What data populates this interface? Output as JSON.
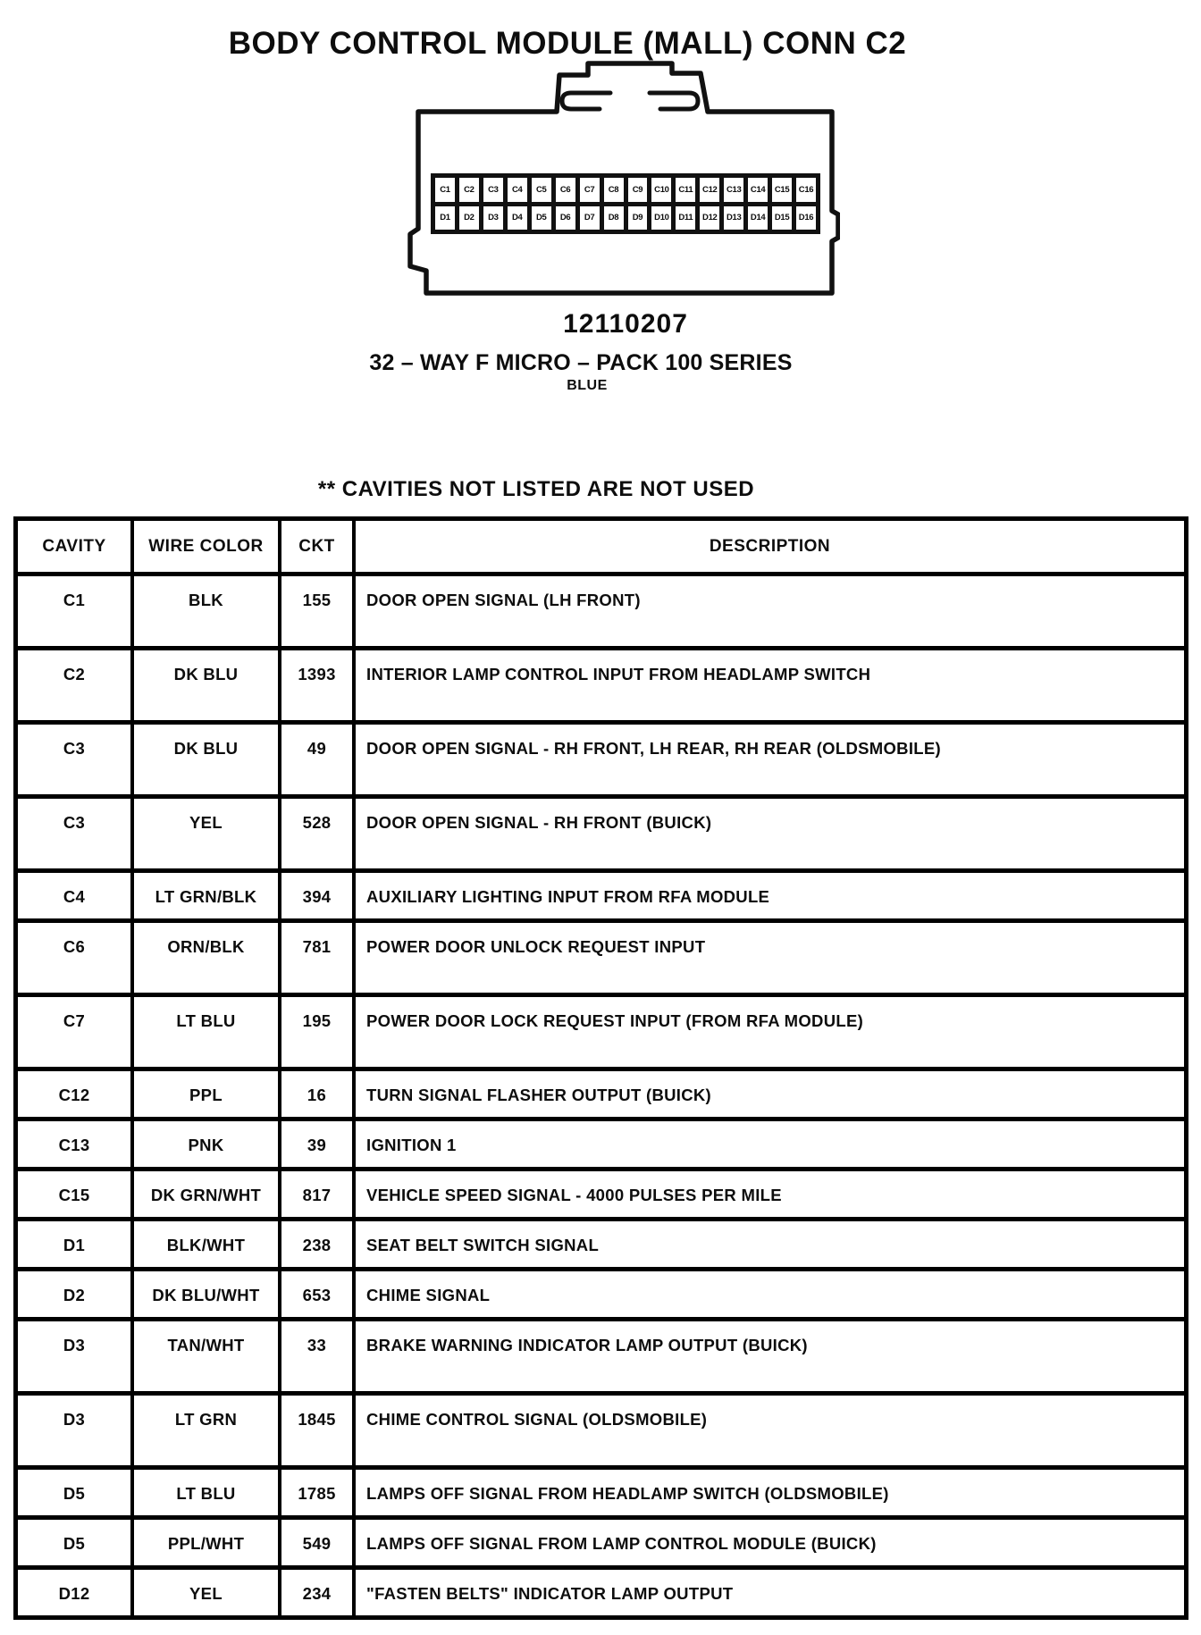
{
  "title": "BODY CONTROL MODULE (MALL) CONN C2",
  "note": "** CAVITIES NOT LISTED ARE NOT USED",
  "connector": {
    "part_number": "12110207",
    "series": "32 – WAY F MICRO – PACK 100 SERIES",
    "color": "BLUE",
    "pin_rows": [
      [
        "C1",
        "C2",
        "C3",
        "C4",
        "C5",
        "C6",
        "C7",
        "C8",
        "C9",
        "C10",
        "C11",
        "C12",
        "C13",
        "C14",
        "C15",
        "C16"
      ],
      [
        "D1",
        "D2",
        "D3",
        "D4",
        "D5",
        "D6",
        "D7",
        "D8",
        "D9",
        "D10",
        "D11",
        "D12",
        "D13",
        "D14",
        "D15",
        "D16"
      ]
    ]
  },
  "table": {
    "headers": [
      "CAVITY",
      "WIRE COLOR",
      "CKT",
      "DESCRIPTION"
    ],
    "rows": [
      {
        "cavity": "C1",
        "wire_color": "BLK",
        "ckt": "155",
        "description": "DOOR OPEN SIGNAL (LH FRONT)",
        "size": "tall"
      },
      {
        "cavity": "C2",
        "wire_color": "DK BLU",
        "ckt": "1393",
        "description": "INTERIOR LAMP CONTROL INPUT FROM HEADLAMP SWITCH",
        "size": "tall"
      },
      {
        "cavity": "C3",
        "wire_color": "DK BLU",
        "ckt": "49",
        "description": "DOOR OPEN SIGNAL - RH FRONT, LH REAR, RH REAR (OLDSMOBILE)",
        "size": "tall"
      },
      {
        "cavity": "C3",
        "wire_color": "YEL",
        "ckt": "528",
        "description": "DOOR OPEN SIGNAL - RH FRONT (BUICK)",
        "size": "tall"
      },
      {
        "cavity": "C4",
        "wire_color": "LT GRN/BLK",
        "ckt": "394",
        "description": "AUXILIARY LIGHTING INPUT FROM RFA MODULE",
        "size": "short"
      },
      {
        "cavity": "C6",
        "wire_color": "ORN/BLK",
        "ckt": "781",
        "description": "POWER DOOR UNLOCK REQUEST INPUT",
        "size": "tall"
      },
      {
        "cavity": "C7",
        "wire_color": "LT BLU",
        "ckt": "195",
        "description": "POWER DOOR LOCK REQUEST INPUT (FROM RFA MODULE)",
        "size": "tall"
      },
      {
        "cavity": "C12",
        "wire_color": "PPL",
        "ckt": "16",
        "description": "TURN SIGNAL FLASHER OUTPUT (BUICK)",
        "size": "short"
      },
      {
        "cavity": "C13",
        "wire_color": "PNK",
        "ckt": "39",
        "description": "IGNITION 1",
        "size": "short"
      },
      {
        "cavity": "C15",
        "wire_color": "DK GRN/WHT",
        "ckt": "817",
        "description": "VEHICLE SPEED SIGNAL - 4000 PULSES PER MILE",
        "size": "short"
      },
      {
        "cavity": "D1",
        "wire_color": "BLK/WHT",
        "ckt": "238",
        "description": "SEAT BELT SWITCH SIGNAL",
        "size": "short"
      },
      {
        "cavity": "D2",
        "wire_color": "DK BLU/WHT",
        "ckt": "653",
        "description": "CHIME SIGNAL",
        "size": "short"
      },
      {
        "cavity": "D3",
        "wire_color": "TAN/WHT",
        "ckt": "33",
        "description": "BRAKE WARNING INDICATOR LAMP OUTPUT (BUICK)",
        "size": "tall"
      },
      {
        "cavity": "D3",
        "wire_color": "LT GRN",
        "ckt": "1845",
        "description": "CHIME CONTROL SIGNAL (OLDSMOBILE)",
        "size": "tall"
      },
      {
        "cavity": "D5",
        "wire_color": "LT BLU",
        "ckt": "1785",
        "description": "LAMPS OFF SIGNAL FROM HEADLAMP SWITCH (OLDSMOBILE)",
        "size": "short"
      },
      {
        "cavity": "D5",
        "wire_color": "PPL/WHT",
        "ckt": "549",
        "description": "LAMPS OFF SIGNAL FROM LAMP CONTROL MODULE (BUICK)",
        "size": "short"
      },
      {
        "cavity": "D12",
        "wire_color": "YEL",
        "ckt": "234",
        "description": "\"FASTEN BELTS\" INDICATOR LAMP OUTPUT",
        "size": "short"
      }
    ]
  }
}
